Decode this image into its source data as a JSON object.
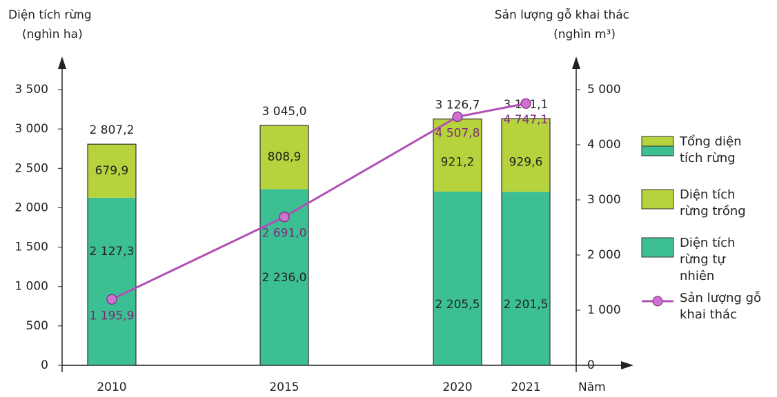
{
  "chart_data": {
    "type": "bar-line",
    "y_label": [
      "Diện tích rừng",
      "(nghìn ha)"
    ],
    "y2_label": [
      "Sản lượng gỗ khai thác",
      "(nghìn m³)"
    ],
    "x_label": "Năm",
    "categories": [
      "2010",
      "2015",
      "2020",
      "2021"
    ],
    "series": [
      {
        "name": "Tổng diện tích rừng",
        "color": "#3dbf94",
        "values": [
          2807.2,
          3045.0,
          3126.7,
          3131.1
        ],
        "value_labels": [
          "2 807,2",
          "3 045,0",
          "3 126,7",
          "3 131,1"
        ]
      },
      {
        "name": "Diện tích rừng trồng",
        "color": "#b6d23c",
        "values": [
          679.9,
          808.9,
          921.2,
          929.6
        ],
        "value_labels": [
          "679,9",
          "808,9",
          "921,2",
          "929,6"
        ]
      },
      {
        "name": "Diện tích rừng tự nhiên",
        "color": "#3dbf94",
        "values": [
          2127.3,
          2236.0,
          2205.5,
          2201.5
        ],
        "value_labels": [
          "2 127,3",
          "2 236,0",
          "2 205,5",
          "2 201,5"
        ]
      },
      {
        "name": "Sản lượng gỗ khai thác",
        "color": "#b04fb4",
        "axis": "y2",
        "values": [
          1195.9,
          2691.0,
          4507.8,
          4747.1
        ],
        "value_labels": [
          "1 195,9",
          "2 691,0",
          "4 507,8",
          "4 747,1"
        ]
      }
    ],
    "ylim": [
      0,
      3500
    ],
    "yticks": [
      0,
      500,
      {
        "value": 1000,
        "label": "1 000"
      },
      {
        "value": 1500,
        "label": "1 500"
      },
      {
        "value": 2000,
        "label": "2 000"
      },
      {
        "value": 2500,
        "label": "2 500"
      },
      {
        "value": 3000,
        "label": "3 000"
      },
      {
        "value": 3500,
        "label": "3 500"
      }
    ],
    "y2lim": [
      0,
      5000
    ],
    "y2ticks": [
      0,
      {
        "value": 1000,
        "label": "1 000"
      },
      {
        "value": 2000,
        "label": "2 000"
      },
      {
        "value": 3000,
        "label": "3 000"
      },
      {
        "value": 4000,
        "label": "4 000"
      },
      {
        "value": 5000,
        "label": "5 000"
      }
    ]
  }
}
